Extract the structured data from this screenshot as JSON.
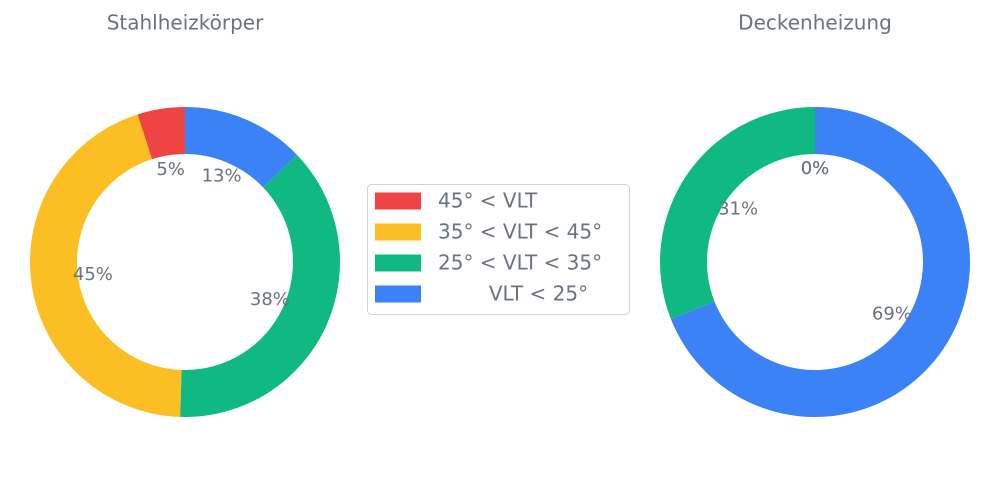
{
  "chart_data": [
    {
      "type": "pie",
      "title": "Stahlheizkörper",
      "categories": [
        "45° < VLT",
        "35° < VLT < 45°",
        "25° < VLT < 35°",
        "        VLT < 25°"
      ],
      "colors": [
        "#ef4444",
        "#fbbf24",
        "#10b981",
        "#3b82f6"
      ],
      "values": [
        5,
        45,
        38,
        13
      ],
      "value_labels": [
        "5%",
        "45%",
        "38%",
        "13%"
      ]
    },
    {
      "type": "pie",
      "title": "Deckenheizung",
      "categories": [
        "45° < VLT",
        "35° < VLT < 45°",
        "25° < VLT < 35°",
        "        VLT < 25°"
      ],
      "colors": [
        "#ef4444",
        "#fbbf24",
        "#10b981",
        "#3b82f6"
      ],
      "values": [
        0,
        0,
        31,
        69
      ],
      "value_labels": [
        "0%",
        "0%",
        "31%",
        "69%"
      ]
    }
  ]
}
